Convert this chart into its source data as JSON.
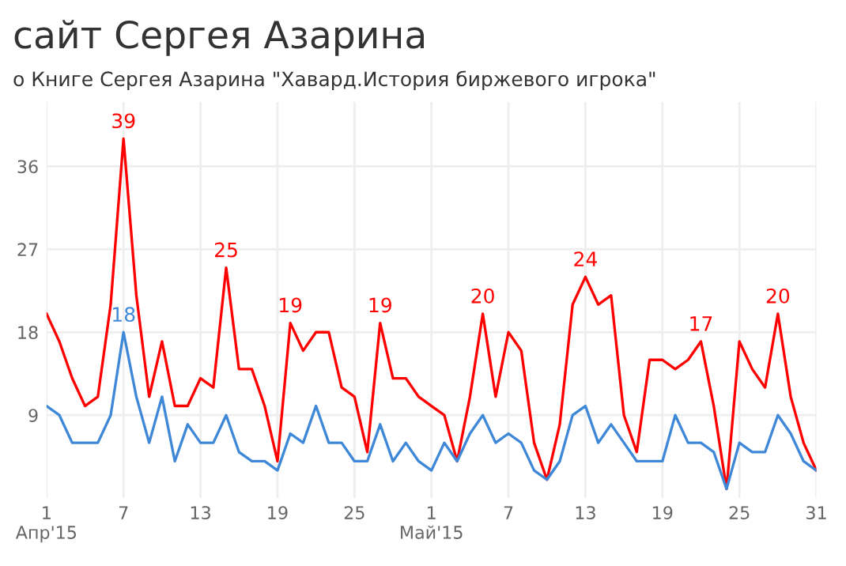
{
  "chart_data": {
    "type": "line",
    "title": "сайт Сергея Азарина",
    "subtitle": "о Книге Сергея Азарина \"Хавард.История биржевого игрока\"",
    "x": [
      "2015-04-01",
      "2015-04-02",
      "2015-04-03",
      "2015-04-04",
      "2015-04-05",
      "2015-04-06",
      "2015-04-07",
      "2015-04-08",
      "2015-04-09",
      "2015-04-10",
      "2015-04-11",
      "2015-04-12",
      "2015-04-13",
      "2015-04-14",
      "2015-04-15",
      "2015-04-16",
      "2015-04-17",
      "2015-04-18",
      "2015-04-19",
      "2015-04-20",
      "2015-04-21",
      "2015-04-22",
      "2015-04-23",
      "2015-04-24",
      "2015-04-25",
      "2015-04-26",
      "2015-04-27",
      "2015-04-28",
      "2015-04-29",
      "2015-04-30",
      "2015-05-01",
      "2015-05-02",
      "2015-05-03",
      "2015-05-04",
      "2015-05-05",
      "2015-05-06",
      "2015-05-07",
      "2015-05-08",
      "2015-05-09",
      "2015-05-10",
      "2015-05-11",
      "2015-05-12",
      "2015-05-13",
      "2015-05-14",
      "2015-05-15",
      "2015-05-16",
      "2015-05-17",
      "2015-05-18",
      "2015-05-19",
      "2015-05-20",
      "2015-05-21",
      "2015-05-22",
      "2015-05-23",
      "2015-05-24",
      "2015-05-25",
      "2015-05-26",
      "2015-05-27",
      "2015-05-28",
      "2015-05-29",
      "2015-05-30",
      "2015-05-31"
    ],
    "xlim": [
      "2015-04-01",
      "2015-05-31"
    ],
    "xticks": [
      {
        "value": "2015-04-01",
        "label": "1\nАпр'15"
      },
      {
        "value": "2015-04-07",
        "label": "7"
      },
      {
        "value": "2015-04-13",
        "label": "13"
      },
      {
        "value": "2015-04-19",
        "label": "19"
      },
      {
        "value": "2015-04-25",
        "label": "25"
      },
      {
        "value": "2015-05-01",
        "label": "1\nМай'15"
      },
      {
        "value": "2015-05-07",
        "label": "7"
      },
      {
        "value": "2015-05-13",
        "label": "13"
      },
      {
        "value": "2015-05-19",
        "label": "19"
      },
      {
        "value": "2015-05-25",
        "label": "25"
      },
      {
        "value": "2015-05-31",
        "label": "31"
      }
    ],
    "ylim": [
      0,
      43
    ],
    "yticks": [
      9,
      18,
      27,
      36
    ],
    "grid": true,
    "legend": false,
    "marker": "none",
    "line_style": "solid",
    "series": [
      {
        "color": "#ff0000",
        "values": [
          20,
          17,
          13,
          10,
          11,
          21,
          39,
          22,
          11,
          17,
          10,
          10,
          13,
          12,
          25,
          14,
          14,
          10,
          4,
          19,
          16,
          18,
          18,
          12,
          11,
          5,
          19,
          13,
          13,
          11,
          10,
          9,
          4,
          11,
          20,
          11,
          18,
          16,
          6,
          2,
          8,
          21,
          24,
          21,
          22,
          9,
          5,
          15,
          15,
          14,
          15,
          17,
          10,
          1,
          17,
          14,
          12,
          20,
          11,
          6,
          3
        ],
        "value_labels": [
          null,
          null,
          null,
          null,
          null,
          null,
          "39",
          null,
          null,
          null,
          null,
          null,
          null,
          null,
          "25",
          null,
          null,
          null,
          null,
          "19",
          null,
          null,
          null,
          null,
          null,
          null,
          "19",
          null,
          null,
          null,
          null,
          null,
          null,
          null,
          "20",
          null,
          null,
          null,
          null,
          null,
          null,
          null,
          "24",
          null,
          null,
          null,
          null,
          null,
          null,
          null,
          null,
          "17",
          null,
          null,
          null,
          null,
          null,
          "20",
          null,
          null,
          null
        ]
      },
      {
        "color": "#3f88d8",
        "values": [
          10,
          9,
          6,
          6,
          6,
          9,
          18,
          11,
          6,
          11,
          4,
          8,
          6,
          6,
          9,
          5,
          4,
          4,
          3,
          7,
          6,
          10,
          6,
          6,
          4,
          4,
          8,
          4,
          6,
          4,
          3,
          6,
          4,
          7,
          9,
          6,
          7,
          6,
          3,
          2,
          4,
          9,
          10,
          6,
          8,
          6,
          4,
          4,
          4,
          9,
          6,
          6,
          5,
          1,
          6,
          5,
          5,
          9,
          7,
          4,
          3
        ],
        "value_labels": [
          null,
          null,
          null,
          null,
          null,
          null,
          "18",
          null,
          null,
          null,
          null,
          null,
          null,
          null,
          null,
          null,
          null,
          null,
          null,
          null,
          null,
          null,
          null,
          null,
          null,
          null,
          null,
          null,
          null,
          null,
          null,
          null,
          null,
          null,
          null,
          null,
          null,
          null,
          null,
          null,
          null,
          null,
          null,
          null,
          null,
          null,
          null,
          null,
          null,
          null,
          null,
          null,
          null,
          null,
          null,
          null,
          null,
          null,
          null,
          null,
          null
        ]
      }
    ]
  }
}
